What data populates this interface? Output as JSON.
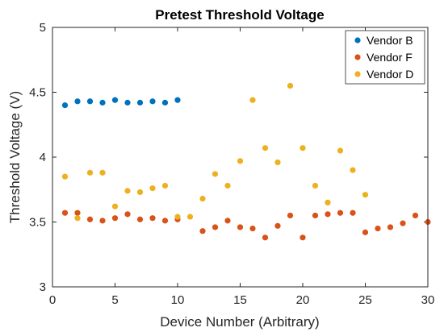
{
  "chart_data": {
    "type": "scatter",
    "title": "Pretest Threshold Voltage",
    "xlabel": "Device Number (Arbitrary)",
    "ylabel": "Threshold Voltage (V)",
    "xlim": [
      0,
      30
    ],
    "ylim": [
      3,
      5
    ],
    "xticks": [
      0,
      5,
      10,
      15,
      20,
      25,
      30
    ],
    "yticks": [
      3,
      3.5,
      4,
      4.5,
      5
    ],
    "ytick_labels": [
      "3",
      "3.5",
      "4",
      "4.5",
      "5"
    ],
    "grid": false,
    "legend_position": "top-right",
    "series": [
      {
        "name": "Vendor B",
        "color": "#0072BD",
        "x": [
          1,
          2,
          3,
          4,
          5,
          6,
          7,
          8,
          9,
          10
        ],
        "y": [
          4.4,
          4.43,
          4.43,
          4.42,
          4.44,
          4.42,
          4.42,
          4.43,
          4.42,
          4.44
        ]
      },
      {
        "name": "Vendor F",
        "color": "#D95319",
        "x": [
          1,
          2,
          3,
          4,
          5,
          6,
          7,
          8,
          9,
          10,
          12,
          13,
          14,
          15,
          16,
          17,
          18,
          19,
          20,
          21,
          22,
          23,
          24,
          25,
          26,
          27,
          28,
          29,
          30
        ],
        "y": [
          3.57,
          3.57,
          3.52,
          3.51,
          3.53,
          3.56,
          3.52,
          3.53,
          3.51,
          3.52,
          3.43,
          3.46,
          3.51,
          3.46,
          3.45,
          3.38,
          3.47,
          3.55,
          3.38,
          3.55,
          3.56,
          3.57,
          3.57,
          3.42,
          3.45,
          3.46,
          3.49,
          3.55,
          3.5
        ]
      },
      {
        "name": "Vendor D",
        "color": "#EDB120",
        "x": [
          1,
          2,
          3,
          4,
          5,
          6,
          7,
          8,
          9,
          10,
          11,
          12,
          13,
          14,
          15,
          16,
          17,
          18,
          19,
          20,
          21,
          22,
          23,
          24,
          25
        ],
        "y": [
          3.85,
          3.53,
          3.88,
          3.88,
          3.62,
          3.74,
          3.73,
          3.76,
          3.78,
          3.54,
          3.54,
          3.68,
          3.87,
          3.78,
          3.97,
          4.44,
          4.07,
          3.96,
          4.55,
          4.07,
          3.78,
          3.65,
          4.05,
          3.9,
          3.71
        ]
      }
    ]
  }
}
